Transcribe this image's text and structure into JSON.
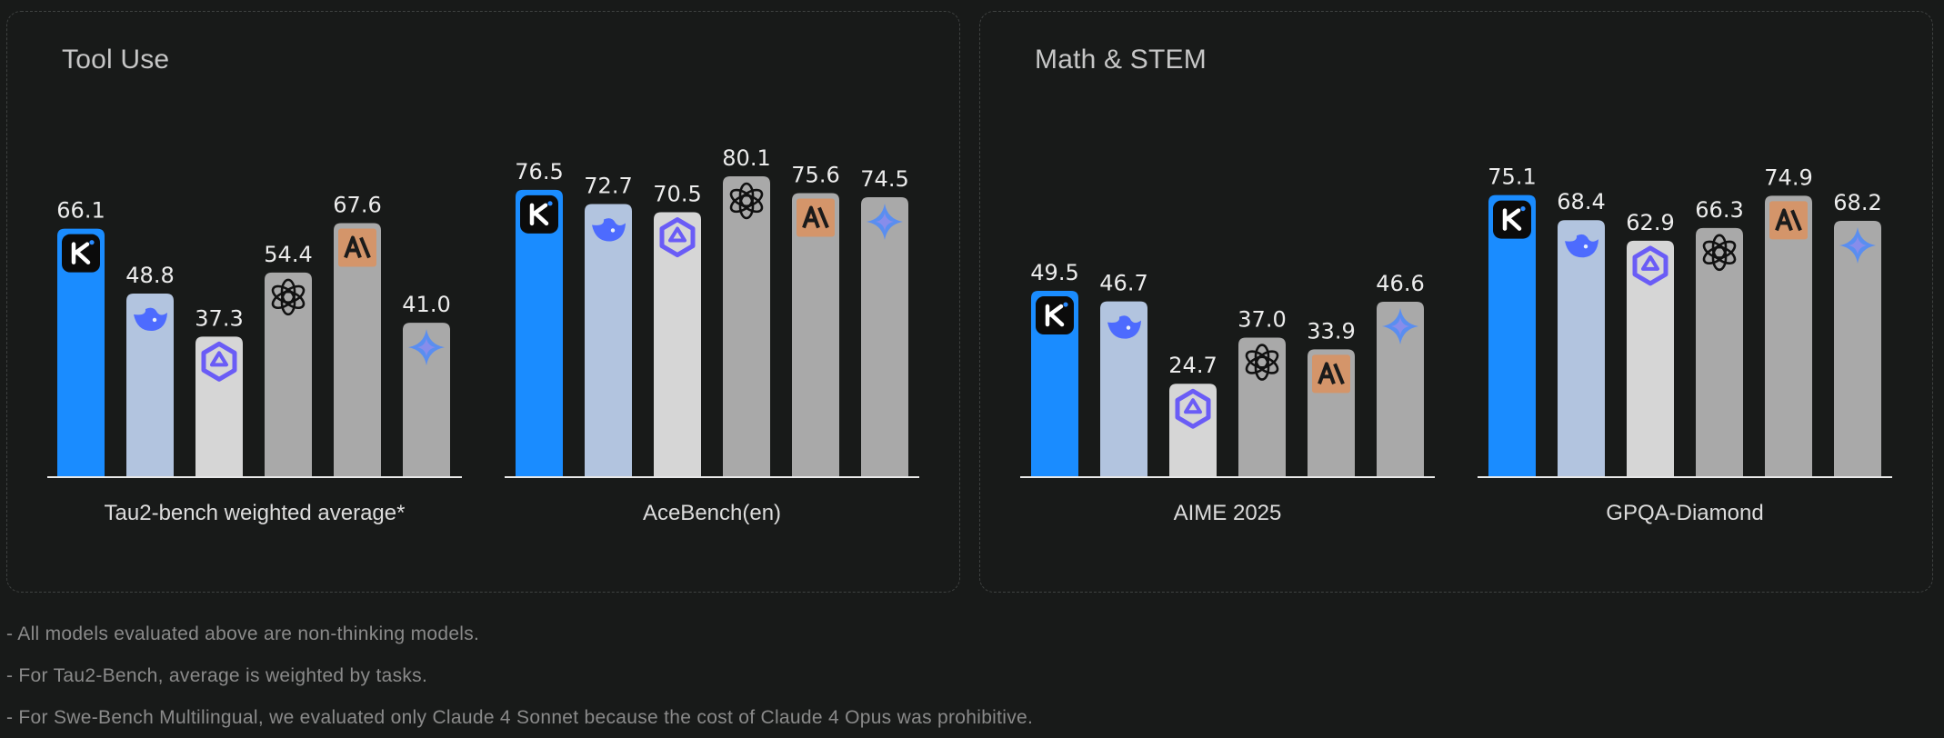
{
  "panels": [
    {
      "title": "Tool Use"
    },
    {
      "title": "Math & STEM"
    }
  ],
  "models": [
    {
      "icon": "kimi-k-logo-icon",
      "color": "#1a8cff"
    },
    {
      "icon": "deepseek-whale-logo-icon",
      "color": "#b2c4df"
    },
    {
      "icon": "qwen-logo-icon",
      "color": "#d6d6d6"
    },
    {
      "icon": "openai-logo-icon",
      "color": "#a9a9a9"
    },
    {
      "icon": "anthropic-logo-icon",
      "color": "#a9a9a9"
    },
    {
      "icon": "gemini-star-logo-icon",
      "color": "#a9a9a9"
    }
  ],
  "chart_data": [
    {
      "type": "bar",
      "panel": "Tool Use",
      "title": "Tau2-bench weighted average*",
      "categories": [
        "kimi",
        "deepseek",
        "qwen",
        "openai",
        "anthropic",
        "gemini"
      ],
      "values": [
        66.1,
        48.8,
        37.3,
        54.4,
        67.6,
        41.0
      ],
      "labels": [
        "66.1",
        "48.8",
        "37.3",
        "54.4",
        "67.6",
        "41.0"
      ]
    },
    {
      "type": "bar",
      "panel": "Tool Use",
      "title": "AceBench(en)",
      "categories": [
        "kimi",
        "deepseek",
        "qwen",
        "openai",
        "anthropic",
        "gemini"
      ],
      "values": [
        76.5,
        72.7,
        70.5,
        80.1,
        75.6,
        74.5
      ],
      "labels": [
        "76.5",
        "72.7",
        "70.5",
        "80.1",
        "75.6",
        "74.5"
      ]
    },
    {
      "type": "bar",
      "panel": "Math & STEM",
      "title": "AIME 2025",
      "categories": [
        "kimi",
        "deepseek",
        "qwen",
        "openai",
        "anthropic",
        "gemini"
      ],
      "values": [
        49.5,
        46.7,
        24.7,
        37.0,
        33.9,
        46.6
      ],
      "labels": [
        "49.5",
        "46.7",
        "24.7",
        "37.0",
        "33.9",
        "46.6"
      ]
    },
    {
      "type": "bar",
      "panel": "Math & STEM",
      "title": "GPQA-Diamond",
      "categories": [
        "kimi",
        "deepseek",
        "qwen",
        "openai",
        "anthropic",
        "gemini"
      ],
      "values": [
        75.1,
        68.4,
        62.9,
        66.3,
        74.9,
        68.2
      ],
      "labels": [
        "75.1",
        "68.4",
        "62.9",
        "66.3",
        "74.9",
        "68.2"
      ]
    }
  ],
  "footnotes": [
    "- All models evaluated above are non-thinking models.",
    "- For Tau2-Bench, average is weighted by tasks.",
    "- For Swe-Bench Multilingual, we evaluated only Claude 4 Sonnet because the cost of Claude 4 Opus was prohibitive."
  ]
}
